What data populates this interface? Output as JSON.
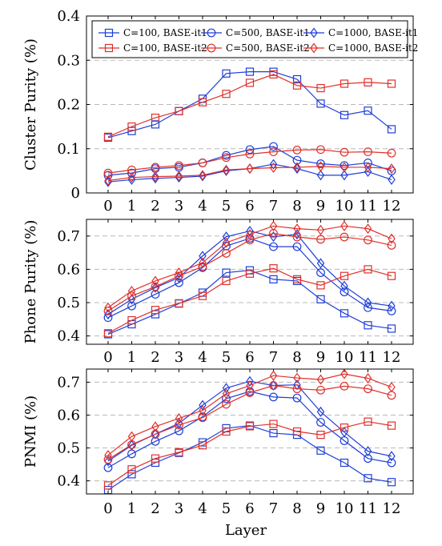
{
  "colors": {
    "blue": "#1f3fd8",
    "red": "#e0302a",
    "grid": "#b8b8b8"
  },
  "xlabel": "Layer",
  "legend": {
    "placement": "top-inside",
    "entries": [
      {
        "label": "C=100, BASE-it1",
        "color": "blue",
        "marker": "square"
      },
      {
        "label": "C=500, BASE-it1",
        "color": "blue",
        "marker": "circle"
      },
      {
        "label": "C=1000, BASE-it1",
        "color": "blue",
        "marker": "diamond"
      },
      {
        "label": "C=100, BASE-it2",
        "color": "red",
        "marker": "square"
      },
      {
        "label": "C=500, BASE-it2",
        "color": "red",
        "marker": "circle"
      },
      {
        "label": "C=1000, BASE-it2",
        "color": "red",
        "marker": "diamond"
      }
    ]
  },
  "chart_data": [
    {
      "type": "line",
      "ylabel": "Cluster Purity (%)",
      "xlabel": "",
      "x": [
        0,
        1,
        2,
        3,
        4,
        5,
        6,
        7,
        8,
        9,
        10,
        11,
        12
      ],
      "ylim": [
        0,
        0.4
      ],
      "yticks": [
        "0",
        "0.1",
        "0.2",
        "0.3",
        "0.4"
      ],
      "grid": "y-dashed",
      "series": [
        {
          "name": "C=100, BASE-it1",
          "color": "blue",
          "marker": "square",
          "values": [
            0.125,
            0.14,
            0.155,
            0.185,
            0.213,
            0.27,
            0.274,
            0.274,
            0.257,
            0.202,
            0.176,
            0.186,
            0.144
          ]
        },
        {
          "name": "C=500, BASE-it1",
          "color": "blue",
          "marker": "circle",
          "values": [
            0.04,
            0.045,
            0.055,
            0.058,
            0.068,
            0.085,
            0.098,
            0.105,
            0.074,
            0.066,
            0.062,
            0.068,
            0.05
          ]
        },
        {
          "name": "C=1000, BASE-it1",
          "color": "blue",
          "marker": "diamond",
          "values": [
            0.025,
            0.03,
            0.033,
            0.035,
            0.038,
            0.05,
            0.055,
            0.065,
            0.055,
            0.04,
            0.04,
            0.048,
            0.03
          ]
        },
        {
          "name": "C=100, BASE-it2",
          "color": "red",
          "marker": "square",
          "values": [
            0.127,
            0.15,
            0.17,
            0.185,
            0.205,
            0.224,
            0.249,
            0.268,
            0.243,
            0.237,
            0.247,
            0.25,
            0.247
          ]
        },
        {
          "name": "C=500, BASE-it2",
          "color": "red",
          "marker": "circle",
          "values": [
            0.045,
            0.052,
            0.058,
            0.062,
            0.068,
            0.08,
            0.088,
            0.093,
            0.097,
            0.098,
            0.092,
            0.093,
            0.09
          ]
        },
        {
          "name": "C=1000, BASE-it2",
          "color": "red",
          "marker": "diamond",
          "values": [
            0.028,
            0.035,
            0.037,
            0.038,
            0.04,
            0.052,
            0.055,
            0.057,
            0.058,
            0.06,
            0.058,
            0.058,
            0.055
          ]
        }
      ]
    },
    {
      "type": "line",
      "ylabel": "Phone Purity (%)",
      "xlabel": "",
      "x": [
        0,
        1,
        2,
        3,
        4,
        5,
        6,
        7,
        8,
        9,
        10,
        11,
        12
      ],
      "ylim": [
        0.375,
        0.75
      ],
      "yticks": [
        "0.4",
        "0.5",
        "0.6",
        "0.7"
      ],
      "grid": "y-dashed",
      "series": [
        {
          "name": "C=100, BASE-it1",
          "color": "blue",
          "marker": "square",
          "values": [
            0.405,
            0.435,
            0.465,
            0.497,
            0.53,
            0.59,
            0.597,
            0.57,
            0.565,
            0.51,
            0.468,
            0.432,
            0.422
          ]
        },
        {
          "name": "C=500, BASE-it1",
          "color": "blue",
          "marker": "circle",
          "values": [
            0.455,
            0.49,
            0.525,
            0.56,
            0.605,
            0.67,
            0.693,
            0.668,
            0.668,
            0.59,
            0.532,
            0.485,
            0.475
          ]
        },
        {
          "name": "C=1000, BASE-it1",
          "color": "blue",
          "marker": "diamond",
          "values": [
            0.465,
            0.51,
            0.545,
            0.575,
            0.64,
            0.698,
            0.715,
            0.698,
            0.705,
            0.618,
            0.55,
            0.5,
            0.49
          ]
        },
        {
          "name": "C=100, BASE-it2",
          "color": "red",
          "marker": "square",
          "values": [
            0.408,
            0.447,
            0.478,
            0.498,
            0.52,
            0.565,
            0.587,
            0.603,
            0.57,
            0.552,
            0.58,
            0.6,
            0.58
          ]
        },
        {
          "name": "C=500, BASE-it2",
          "color": "red",
          "marker": "circle",
          "values": [
            0.475,
            0.52,
            0.548,
            0.58,
            0.608,
            0.648,
            0.688,
            0.708,
            0.697,
            0.69,
            0.697,
            0.688,
            0.672
          ]
        },
        {
          "name": "C=1000, BASE-it2",
          "color": "red",
          "marker": "diamond",
          "values": [
            0.485,
            0.535,
            0.565,
            0.59,
            0.62,
            0.68,
            0.705,
            0.73,
            0.722,
            0.718,
            0.73,
            0.722,
            0.692
          ]
        }
      ]
    },
    {
      "type": "line",
      "ylabel": "PNMI (%)",
      "xlabel": "Layer",
      "x": [
        0,
        1,
        2,
        3,
        4,
        5,
        6,
        7,
        8,
        9,
        10,
        11,
        12
      ],
      "ylim": [
        0.36,
        0.74
      ],
      "yticks": [
        "0.4",
        "0.5",
        "0.6",
        "0.7"
      ],
      "xticks": [
        "0",
        "1",
        "2",
        "3",
        "4",
        "5",
        "6",
        "7",
        "8",
        "9",
        "10",
        "11",
        "12"
      ],
      "grid": "y-dashed",
      "series": [
        {
          "name": "C=100, BASE-it1",
          "color": "blue",
          "marker": "square",
          "values": [
            0.372,
            0.42,
            0.455,
            0.485,
            0.517,
            0.56,
            0.568,
            0.545,
            0.54,
            0.492,
            0.455,
            0.408,
            0.396
          ]
        },
        {
          "name": "C=500, BASE-it1",
          "color": "blue",
          "marker": "circle",
          "values": [
            0.44,
            0.482,
            0.52,
            0.552,
            0.595,
            0.65,
            0.672,
            0.655,
            0.652,
            0.578,
            0.522,
            0.468,
            0.455
          ]
        },
        {
          "name": "C=1000, BASE-it1",
          "color": "blue",
          "marker": "diamond",
          "values": [
            0.46,
            0.508,
            0.542,
            0.575,
            0.63,
            0.682,
            0.703,
            0.69,
            0.692,
            0.61,
            0.548,
            0.49,
            0.475
          ]
        },
        {
          "name": "C=100, BASE-it2",
          "color": "red",
          "marker": "square",
          "values": [
            0.386,
            0.435,
            0.468,
            0.487,
            0.508,
            0.55,
            0.566,
            0.573,
            0.55,
            0.54,
            0.562,
            0.58,
            0.568
          ]
        },
        {
          "name": "C=500, BASE-it2",
          "color": "red",
          "marker": "circle",
          "values": [
            0.465,
            0.51,
            0.542,
            0.57,
            0.592,
            0.633,
            0.668,
            0.69,
            0.68,
            0.676,
            0.688,
            0.68,
            0.66
          ]
        },
        {
          "name": "C=1000, BASE-it2",
          "color": "red",
          "marker": "diamond",
          "values": [
            0.478,
            0.535,
            0.565,
            0.59,
            0.614,
            0.665,
            0.69,
            0.72,
            0.713,
            0.708,
            0.725,
            0.712,
            0.685
          ]
        }
      ]
    }
  ]
}
